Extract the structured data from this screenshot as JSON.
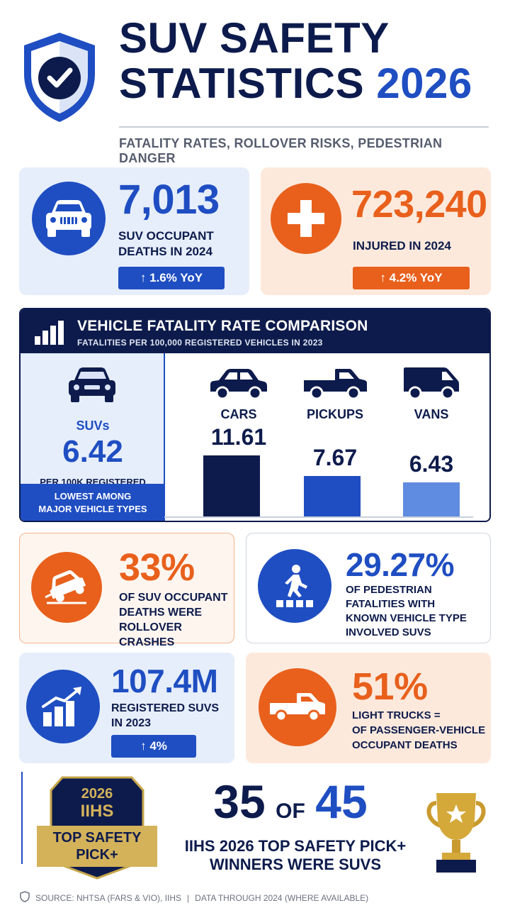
{
  "header": {
    "title_line1": "SUV SAFETY",
    "title_line2_a": "STATISTICS",
    "title_line2_b": "2026",
    "subtitle": "FATALITY RATES, ROLLOVER RISKS, PEDESTRIAN DANGER",
    "icon": "shield-check-icon"
  },
  "stats_top": [
    {
      "value": "7,013",
      "label_1": "SUV OCCUPANT",
      "label_2": "DEATHS IN 2024",
      "change": "↑ 1.6% YoY",
      "icon": "suv-front-icon",
      "color": "#1f4ec2"
    },
    {
      "value": "723,240",
      "label_1": "INJURED IN 2024",
      "change": "↑ 4.2% YoY",
      "icon": "medical-cross-icon",
      "color": "#e8601c"
    }
  ],
  "comparison": {
    "title": "VEHICLE FATALITY RATE COMPARISON",
    "subtitle": "FATALITIES PER 100,000 REGISTERED VEHICLES IN 2023",
    "icon": "bar-chart-icon",
    "suv": {
      "name": "SUVs",
      "value": "6.42",
      "unit": "PER 100K REGISTERED",
      "note_1": "LOWEST AMONG",
      "note_2": "MAJOR VEHICLE TYPES"
    },
    "others": [
      {
        "name": "CARS",
        "value": "11.61",
        "icon": "car-icon",
        "color": "#0d1b4c"
      },
      {
        "name": "PICKUPS",
        "value": "7.67",
        "icon": "pickup-icon",
        "color": "#1f4ec2"
      },
      {
        "name": "VANS",
        "value": "6.43",
        "icon": "van-icon",
        "color": "#5f8be0"
      }
    ]
  },
  "stats_mid": [
    {
      "value": "33%",
      "lines": [
        "OF SUV OCCUPANT",
        "DEATHS WERE",
        "ROLLOVER CRASHES"
      ],
      "icon": "rollover-car-icon"
    },
    {
      "value": "29.27%",
      "lines": [
        "OF PEDESTRIAN",
        "FATALITIES WITH",
        "KNOWN VEHICLE TYPE",
        "INVOLVED SUVS"
      ],
      "icon": "pedestrian-crossing-icon"
    }
  ],
  "stats_low": [
    {
      "value": "107.4M",
      "lines": [
        "REGISTERED SUVS",
        "IN 2023"
      ],
      "change": "↑ 4%",
      "icon": "growth-chart-icon"
    },
    {
      "value": "51%",
      "lines": [
        "LIGHT TRUCKS =",
        "OF PASSENGER-VEHICLE",
        "OCCUPANT DEATHS"
      ],
      "icon": "pickup-truck-icon"
    }
  ],
  "award": {
    "badge_year": "2026",
    "badge_org": "IIHS",
    "badge_l1": "TOP SAFETY",
    "badge_l2": "PICK+",
    "num_a": "35",
    "of": "OF",
    "num_b": "45",
    "line1": "IIHS 2026 TOP SAFETY PICK+",
    "line2": "WINNERS WERE SUVS",
    "icon": "trophy-icon"
  },
  "footer": {
    "source": "SOURCE: NHTSA (FARS & VIO), IIHS",
    "sep": "|",
    "data_note": "DATA THROUGH 2024 (WHERE AVAILABLE)"
  }
}
